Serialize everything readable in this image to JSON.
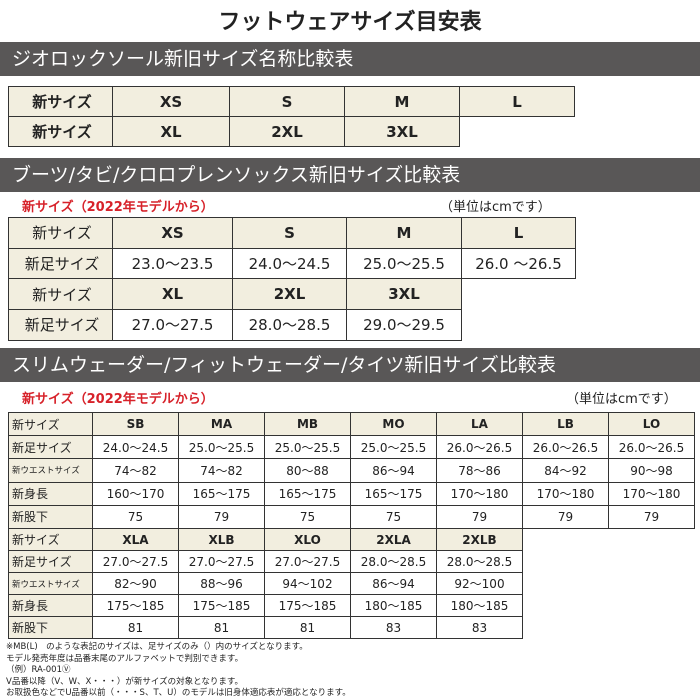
{
  "title": "フットウェアサイズ目安表",
  "sections": [
    {
      "heading": "ジオロックソール新旧サイズ名称比較表",
      "tables": [
        {
          "rows": [
            [
              "新サイズ",
              "XS",
              "S",
              "M",
              "L"
            ],
            [
              "新サイズ",
              "XL",
              "2XL",
              "3XL"
            ]
          ]
        }
      ]
    },
    {
      "heading": "ブーツ/タビ/クロロプレンソックス新旧サイズ比較表",
      "note": "新サイズ（2022年モデルから）",
      "unit": "（単位はcmです）",
      "tables": [
        {
          "rows": [
            [
              "新サイズ",
              "XS",
              "S",
              "M",
              "L"
            ],
            [
              "新足サイズ",
              "23.0～23.5",
              "24.0～24.5",
              "25.0～25.5",
              "26.0 ～26.5"
            ],
            [
              "新サイズ",
              "XL",
              "2XL",
              "3XL"
            ],
            [
              "新足サイズ",
              "27.0～27.5",
              "28.0～28.5",
              "29.0～29.5"
            ]
          ]
        }
      ]
    },
    {
      "heading": "スリムウェーダー/フィットウェーダー/タイツ新旧サイズ比較表",
      "note": "新サイズ（2022年モデルから）",
      "unit": "（単位はcmです）",
      "tables": [
        {
          "rows": [
            [
              "新サイズ",
              "SB",
              "MA",
              "MB",
              "MO",
              "LA",
              "LB",
              "LO"
            ],
            [
              "新足サイズ",
              "24.0～24.5",
              "25.0～25.5",
              "25.0～25.5",
              "25.0～25.5",
              "26.0～26.5",
              "26.0～26.5",
              "26.0～26.5"
            ],
            [
              "新ウエストサイズ",
              "74～82",
              "74～82",
              "80～88",
              "86～94",
              "78～86",
              "84～92",
              "90～98"
            ],
            [
              "新身長",
              "160～170",
              "165～175",
              "165～175",
              "165～175",
              "170～180",
              "170～180",
              "170～180"
            ],
            [
              "新股下",
              "75",
              "79",
              "75",
              "75",
              "79",
              "79",
              "79"
            ]
          ]
        },
        {
          "rows": [
            [
              "新サイズ",
              "XLA",
              "XLB",
              "XLO",
              "2XLA",
              "2XLB"
            ],
            [
              "新足サイズ",
              "27.0～27.5",
              "27.0～27.5",
              "27.0～27.5",
              "28.0～28.5",
              "28.0～28.5"
            ],
            [
              "新ウエストサイズ",
              "82～90",
              "88～96",
              "94～102",
              "86～94",
              "92～100"
            ],
            [
              "新身長",
              "175～185",
              "175～185",
              "175～185",
              "180～185",
              "180～185"
            ],
            [
              "新股下",
              "81",
              "81",
              "81",
              "83",
              "83"
            ]
          ]
        }
      ]
    }
  ],
  "footnotes": [
    "※MB(L)　のような表記のサイズは、足サイズのみ（）内のサイズとなります。",
    "モデル発売年度は品番末尾のアルファベットで判別できます。",
    "（例）RA-001Ⓥ",
    "V品番以降（V、W、X・・・）が新サイズの対象となります。",
    "お取扱色などでU品番以前（・・・S、T、U）のモデルは旧身体適応表が適応となります。"
  ]
}
